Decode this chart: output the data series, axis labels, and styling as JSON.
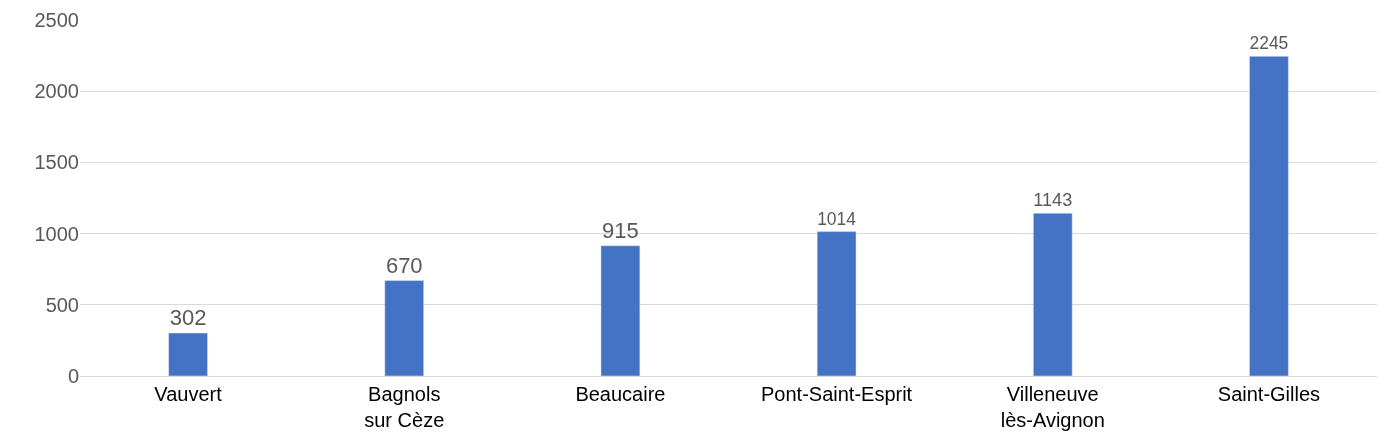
{
  "chart_data": {
    "type": "bar",
    "categories": [
      "Vauvert",
      "Bagnols sur Cèze",
      "Beaucaire",
      "Pont-Saint-Esprit",
      "Villeneuve lès-Avignon",
      "Saint-Gilles"
    ],
    "values": [
      302,
      670,
      915,
      1014,
      1143,
      2245
    ],
    "color": "#4472c4",
    "ylim": [
      0,
      2500
    ],
    "yticks": [
      0,
      500,
      1000,
      1500,
      2000,
      2500
    ],
    "grid": "y",
    "data_labels": true,
    "legend": false
  }
}
